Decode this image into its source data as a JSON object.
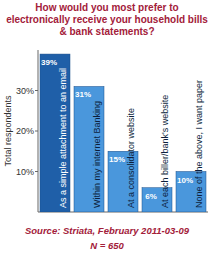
{
  "chart_data": {
    "type": "bar",
    "title": "How would you most prefer to electronically receive your household bills & bank statements?",
    "y_label": "Total respondents",
    "categories": [
      "As a simple attachment to an email",
      "Within my internet Banking",
      "At a consolidator website",
      "At each biller/bank's website",
      "None of the above, I want paper"
    ],
    "values": [
      39,
      31,
      15,
      6,
      10
    ],
    "value_labels": [
      "39%",
      "31%",
      "15%",
      "6%",
      "10%"
    ],
    "colors": [
      "#1f5fa8",
      "#4a97dc",
      "#4a97dc",
      "#4a97dc",
      "#4a97dc"
    ],
    "ylim": [
      0,
      40
    ],
    "yticks": [
      {
        "value": 10,
        "label": "10%"
      },
      {
        "value": 20,
        "label": "20%"
      },
      {
        "value": 30,
        "label": "30%"
      }
    ],
    "grid": false,
    "data_labels": true,
    "source": "Source: Striata, February 2011-03-09",
    "annotation": "N = 650"
  }
}
